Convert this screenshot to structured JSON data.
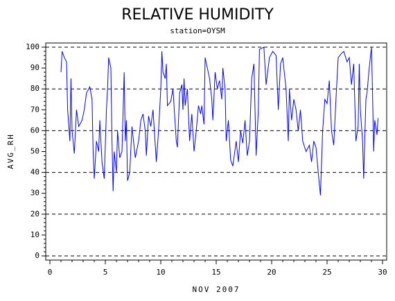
{
  "chart_data": {
    "type": "line",
    "title": "RELATIVE HUMIDITY",
    "subtitle": "station=OYSM",
    "x_label": "NOV 2007",
    "y_label": "AVG_RH",
    "xlim": [
      0,
      30
    ],
    "xticks": [
      0,
      5,
      10,
      15,
      20,
      25,
      30
    ],
    "ylim": [
      0,
      100
    ],
    "yticks": [
      0,
      10,
      20,
      30,
      40,
      50,
      60,
      70,
      80,
      90,
      100
    ],
    "ygrid": [
      0,
      20,
      40,
      60,
      80,
      100
    ],
    "series": [
      {
        "name": "AVG_RH",
        "color": "#0000ff",
        "x": [
          1.0,
          1.1,
          1.3,
          1.5,
          1.6,
          1.8,
          1.9,
          2.0,
          2.2,
          2.4,
          2.6,
          2.9,
          3.1,
          3.3,
          3.6,
          3.8,
          3.9,
          4.0,
          4.2,
          4.4,
          4.5,
          4.7,
          4.9,
          5.1,
          5.2,
          5.3,
          5.5,
          5.6,
          5.7,
          5.8,
          6.0,
          6.1,
          6.3,
          6.5,
          6.7,
          6.8,
          6.9,
          7.0,
          7.2,
          7.4,
          7.7,
          8.0,
          8.2,
          8.4,
          8.6,
          8.7,
          8.9,
          9.1,
          9.3,
          9.6,
          9.8,
          10.0,
          10.1,
          10.2,
          10.4,
          10.5,
          10.6,
          10.9,
          11.1,
          11.4,
          11.5,
          11.7,
          11.9,
          12.0,
          12.1,
          12.2,
          12.4,
          12.6,
          12.8,
          13.0,
          13.2,
          13.4,
          13.6,
          13.7,
          13.9,
          14.0,
          14.4,
          14.6,
          14.7,
          14.9,
          15.1,
          15.3,
          15.5,
          15.6,
          15.8,
          15.9,
          16.1,
          16.3,
          16.5,
          16.8,
          17.0,
          17.2,
          17.4,
          17.6,
          17.8,
          18.0,
          18.2,
          18.4,
          18.6,
          18.8,
          18.9,
          19.3,
          19.5,
          19.8,
          20.1,
          20.4,
          20.6,
          20.8,
          21.0,
          21.3,
          21.5,
          21.6,
          21.8,
          22.0,
          22.2,
          22.4,
          22.6,
          22.8,
          23.1,
          23.4,
          23.6,
          23.8,
          24.0,
          24.2,
          24.4,
          24.6,
          24.8,
          25.0,
          25.2,
          25.4,
          25.6,
          25.8,
          26.0,
          26.3,
          26.5,
          26.8,
          27.0,
          27.2,
          27.4,
          27.6,
          27.8,
          27.9,
          28.0,
          28.2,
          28.3,
          28.5,
          28.6,
          28.8,
          29.0,
          29.1,
          29.2,
          29.3,
          29.5,
          29.6
        ],
        "values": [
          88,
          98,
          95,
          93,
          70,
          55,
          85,
          60,
          49,
          70,
          62,
          65,
          70,
          78,
          81,
          75,
          50,
          37,
          55,
          50,
          65,
          45,
          37,
          70,
          80,
          95,
          90,
          55,
          31,
          50,
          40,
          60,
          47,
          50,
          88,
          55,
          65,
          36,
          40,
          62,
          47,
          55,
          65,
          68,
          60,
          48,
          67,
          62,
          70,
          45,
          60,
          80,
          98,
          88,
          85,
          92,
          72,
          74,
          80,
          55,
          52,
          78,
          82,
          70,
          85,
          72,
          80,
          55,
          68,
          50,
          60,
          72,
          68,
          72,
          63,
          95,
          85,
          75,
          65,
          88,
          80,
          84,
          75,
          90,
          80,
          55,
          65,
          46,
          43,
          55,
          45,
          60,
          54,
          65,
          48,
          55,
          85,
          92,
          48,
          70,
          99,
          100,
          82,
          95,
          98,
          96,
          70,
          92,
          95,
          80,
          55,
          80,
          65,
          75,
          70,
          60,
          70,
          55,
          50,
          53,
          45,
          55,
          52,
          40,
          29,
          60,
          75,
          73,
          84,
          60,
          53,
          75,
          95,
          97,
          98,
          93,
          95,
          82,
          92,
          55,
          62,
          92,
          70,
          55,
          37,
          75,
          78,
          90,
          100,
          78,
          50,
          65,
          58,
          66
        ]
      }
    ]
  }
}
